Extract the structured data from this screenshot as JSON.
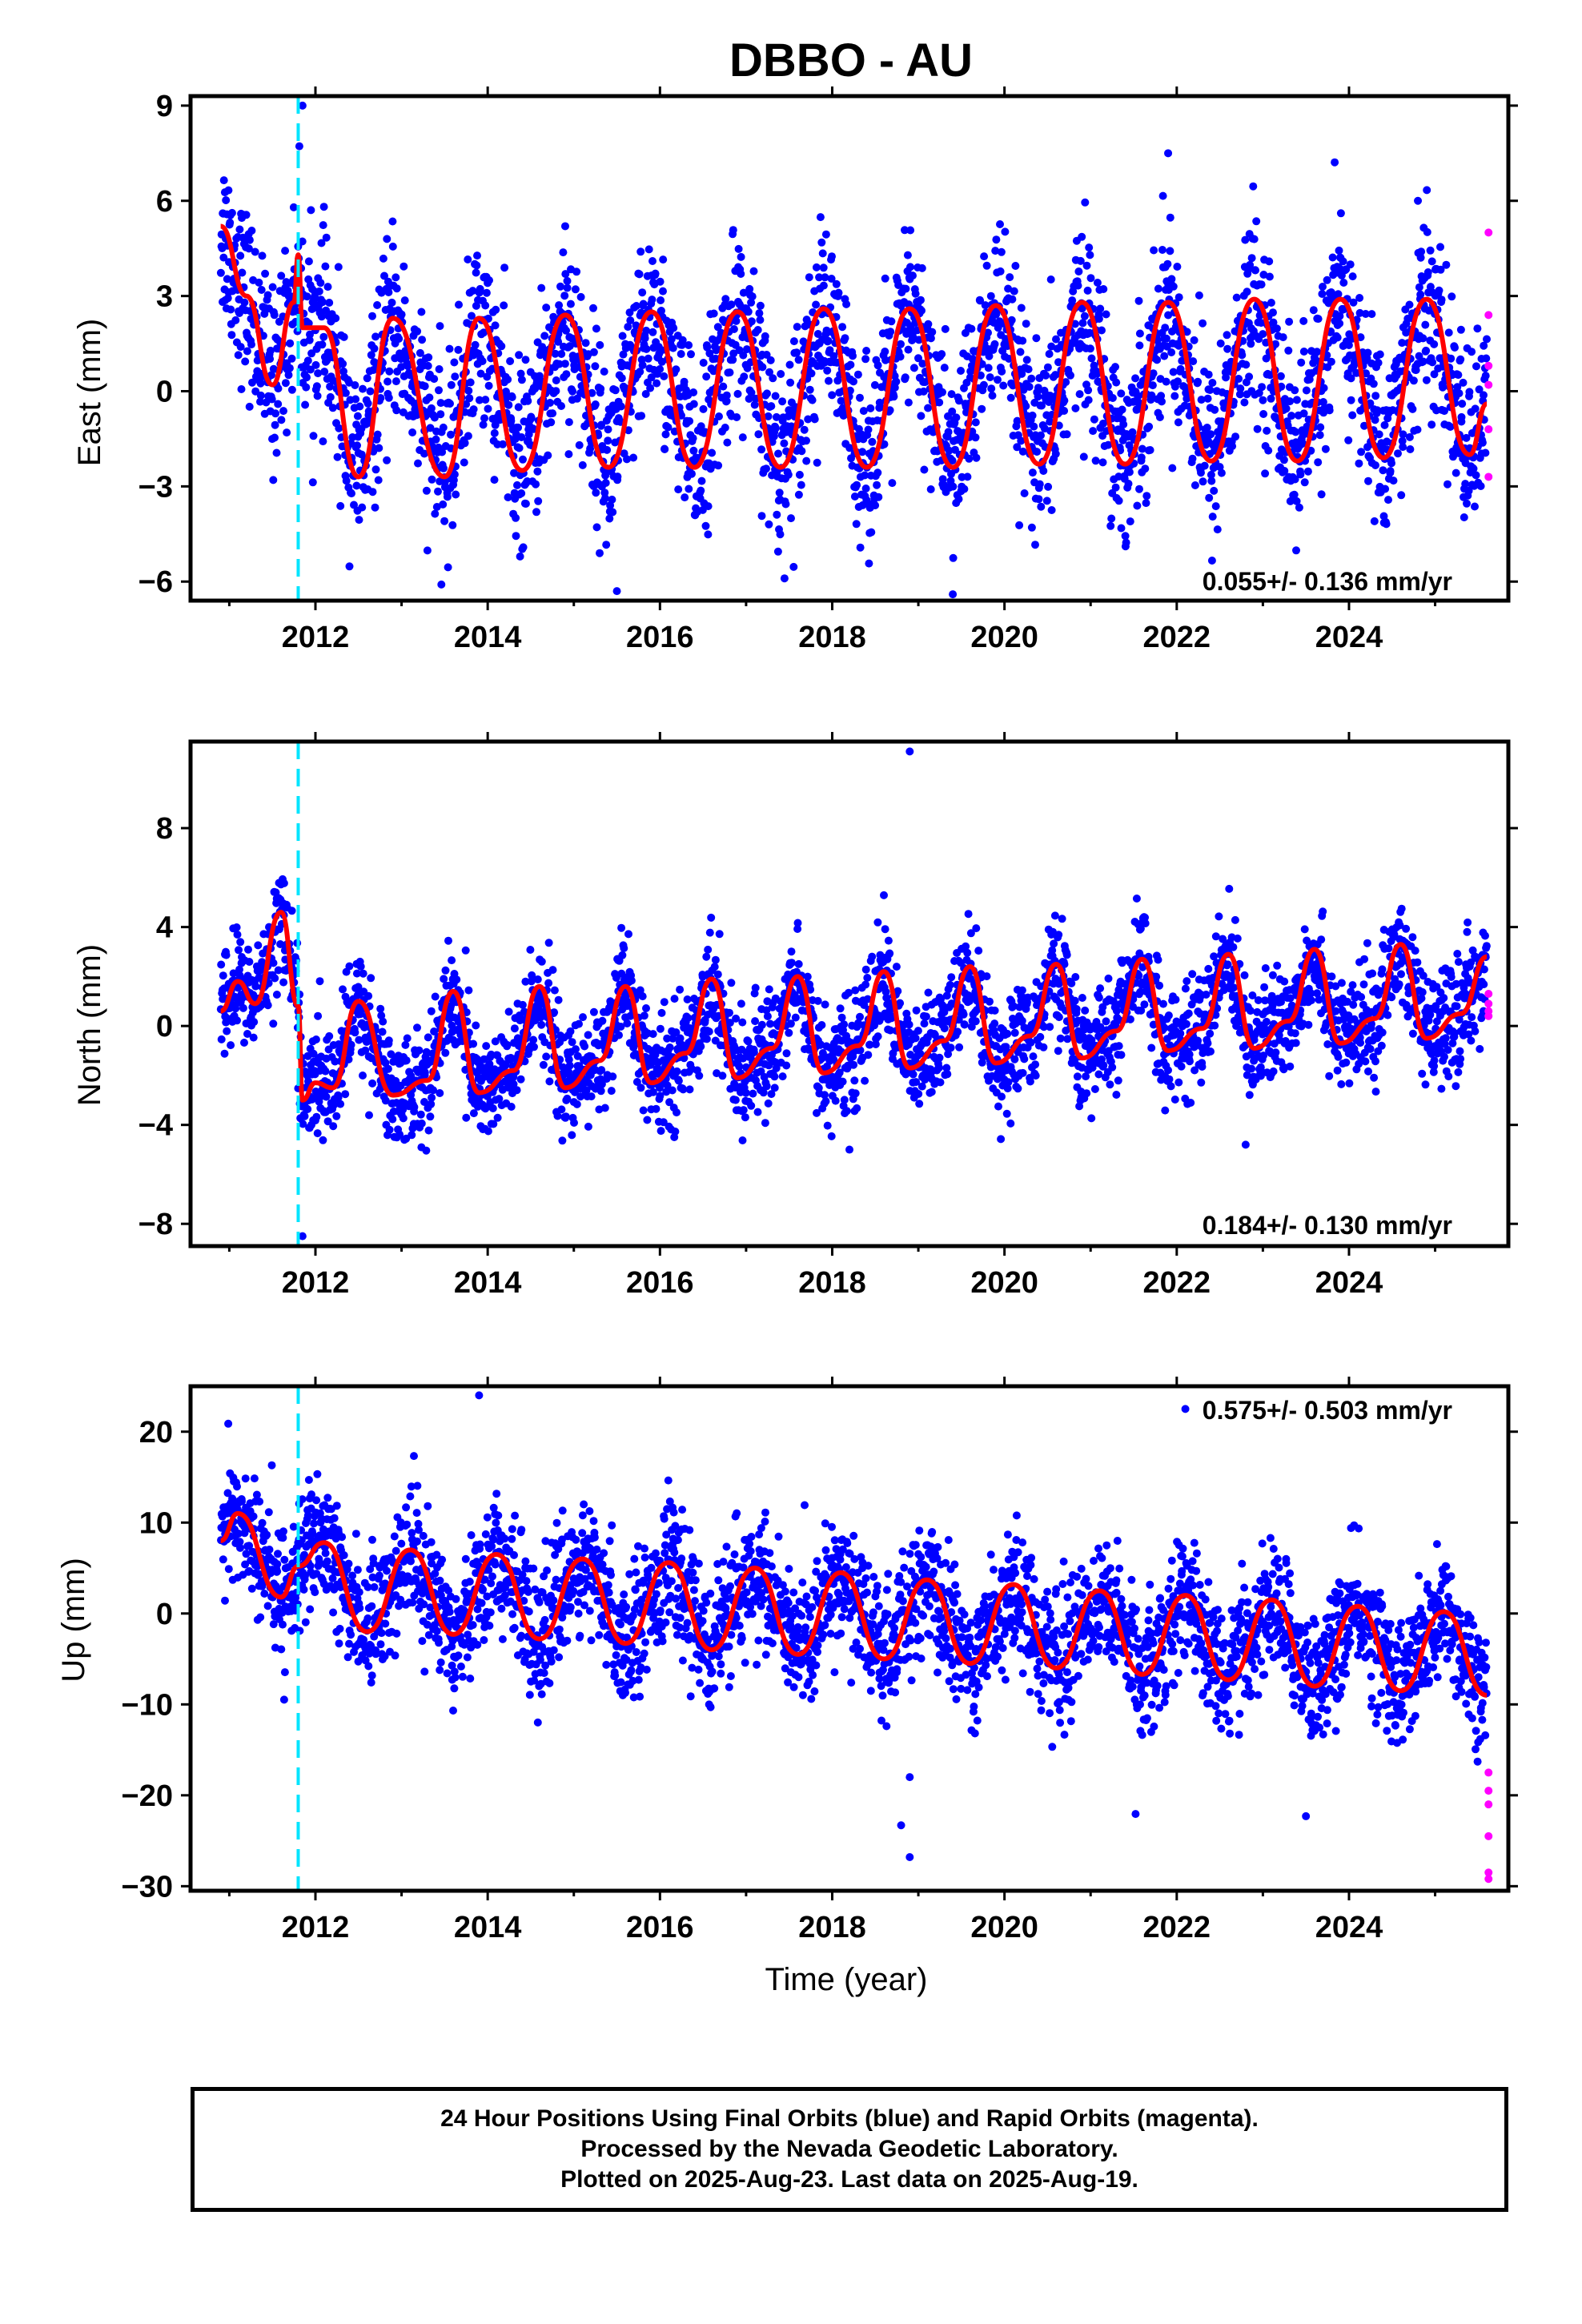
{
  "title": "DBBO - AU",
  "colors": {
    "final_points": "#0000ff",
    "rapid_points": "#ff00ff",
    "model_line": "#ff0000",
    "event_line": "#00e5ff",
    "frame": "#000000"
  },
  "x_axis": {
    "label": "Time (year)",
    "range": [
      2010.55,
      2025.85
    ],
    "ticks": [
      "2012",
      "2014",
      "2016",
      "2018",
      "2020",
      "2022",
      "2024"
    ]
  },
  "footer": {
    "line1": "24 Hour Positions Using Final Orbits (blue) and Rapid Orbits (magenta).",
    "line2": "Processed by the Nevada Geodetic Laboratory.",
    "line3": "Plotted on 2025-Aug-23. Last data on 2025-Aug-19."
  },
  "chart_data": [
    {
      "type": "scatter",
      "component": "east",
      "ylabel": "East (mm)",
      "ylim": [
        -6.6,
        9.3
      ],
      "yticks": [
        "−6",
        "−3",
        "0",
        "3",
        "6",
        "9"
      ],
      "rate_text": "0.055+/- 0.136 mm/yr",
      "rate_position": "bottom-right",
      "event_line_x": 2011.8,
      "series": [
        {
          "name": "Final Orbits (blue)",
          "kind": "points",
          "trend_mm_yr": 0.055,
          "annual_amplitude_mm": 2.5,
          "scatter_sd_mm": 1.4,
          "x_start": 2010.9,
          "x_end": 2025.6,
          "outliers": [
            [
              2011.85,
              9.0
            ],
            [
              2014.9,
              5.2
            ],
            [
              2024.8,
              6.0
            ],
            [
              2021.9,
              7.5
            ],
            [
              2019.4,
              -6.4
            ],
            [
              2015.5,
              -6.3
            ]
          ]
        },
        {
          "name": "Rapid Orbits (magenta)",
          "kind": "points",
          "x": [
            2025.62,
            2025.62,
            2025.62,
            2025.62,
            2025.62,
            2025.62
          ],
          "y": [
            5.0,
            2.4,
            0.8,
            0.2,
            -1.2,
            -2.7
          ]
        },
        {
          "name": "Model",
          "kind": "line",
          "x": [
            2010.9,
            2011.2,
            2011.5,
            2011.75,
            2011.8,
            2011.85,
            2012.1,
            2012.5,
            2012.9,
            2013.5,
            2013.9,
            2014.4,
            2014.9,
            2015.4,
            2015.9,
            2016.4,
            2016.9,
            2017.4,
            2017.9,
            2018.4,
            2018.9,
            2019.4,
            2019.9,
            2020.4,
            2020.9,
            2021.4,
            2021.9,
            2022.4,
            2022.9,
            2023.4,
            2023.9,
            2024.4,
            2024.9,
            2025.4,
            2025.6
          ],
          "y": [
            5.2,
            3.0,
            0.2,
            2.8,
            4.3,
            2.0,
            2.0,
            -2.7,
            2.3,
            -2.7,
            2.3,
            -2.5,
            2.4,
            -2.4,
            2.5,
            -2.4,
            2.5,
            -2.4,
            2.6,
            -2.4,
            2.6,
            -2.4,
            2.7,
            -2.3,
            2.8,
            -2.3,
            2.8,
            -2.2,
            2.9,
            -2.2,
            2.9,
            -2.1,
            2.9,
            -2.0,
            -0.4
          ]
        }
      ]
    },
    {
      "type": "scatter",
      "component": "north",
      "ylabel": "North (mm)",
      "ylim": [
        -8.9,
        11.5
      ],
      "yticks": [
        "−8",
        "−4",
        "0",
        "4",
        "8"
      ],
      "rate_text": "0.184+/- 0.130 mm/yr",
      "rate_position": "bottom-right",
      "event_line_x": 2011.8,
      "series": [
        {
          "name": "Final Orbits (blue)",
          "kind": "points",
          "trend_mm_yr": 0.184,
          "annual_amplitude_mm": 2.0,
          "scatter_sd_mm": 1.1,
          "x_start": 2010.9,
          "x_end": 2025.6,
          "outliers": [
            [
              2018.9,
              11.1
            ],
            [
              2018.2,
              -5.0
            ],
            [
              2022.8,
              -4.8
            ],
            [
              2011.85,
              -8.5
            ]
          ]
        },
        {
          "name": "Rapid Orbits (magenta)",
          "kind": "points",
          "x": [
            2025.62,
            2025.62,
            2025.62,
            2025.62
          ],
          "y": [
            1.3,
            0.9,
            0.6,
            0.4
          ]
        },
        {
          "name": "Model",
          "kind": "line",
          "x": [
            2010.9,
            2011.1,
            2011.3,
            2011.6,
            2011.8,
            2011.85,
            2012.0,
            2012.2,
            2012.5,
            2012.9,
            2013.3,
            2013.6,
            2013.9,
            2014.3,
            2014.6,
            2014.9,
            2015.3,
            2015.6,
            2015.9,
            2016.3,
            2016.6,
            2016.9,
            2017.3,
            2017.6,
            2017.9,
            2018.3,
            2018.6,
            2018.9,
            2019.3,
            2019.6,
            2019.9,
            2020.3,
            2020.6,
            2020.9,
            2021.3,
            2021.6,
            2021.9,
            2022.3,
            2022.6,
            2022.9,
            2023.3,
            2023.6,
            2023.9,
            2024.3,
            2024.6,
            2024.9,
            2025.3,
            2025.6
          ],
          "y": [
            0.6,
            1.8,
            0.9,
            4.6,
            0.8,
            -3.0,
            -2.3,
            -2.5,
            1.0,
            -2.8,
            -2.2,
            1.4,
            -2.7,
            -1.8,
            1.6,
            -2.5,
            -1.4,
            1.6,
            -2.3,
            -1.1,
            1.9,
            -2.1,
            -0.9,
            2.0,
            -1.9,
            -0.8,
            2.2,
            -1.7,
            -0.6,
            2.4,
            -1.5,
            -0.4,
            2.5,
            -1.3,
            -0.2,
            2.7,
            -1.0,
            -0.1,
            2.9,
            -0.9,
            0.2,
            3.1,
            -0.7,
            0.3,
            3.3,
            -0.5,
            0.5,
            2.8
          ]
        }
      ]
    },
    {
      "type": "scatter",
      "component": "up",
      "ylabel": "Up (mm)",
      "ylim": [
        -30.5,
        25
      ],
      "yticks": [
        "−30",
        "−20",
        "−10",
        "0",
        "10",
        "20"
      ],
      "rate_text": "0.575+/- 0.503 mm/yr",
      "rate_position": "top-right",
      "event_line_x": 2011.8,
      "series": [
        {
          "name": "Final Orbits (blue)",
          "kind": "points",
          "trend_mm_yr": 0.575,
          "annual_amplitude_mm": 5.5,
          "scatter_sd_mm": 3.5,
          "x_start": 2010.9,
          "x_end": 2025.6,
          "outliers": [
            [
              2013.9,
              24.0
            ],
            [
              2018.9,
              -26.8
            ],
            [
              2018.8,
              -23.3
            ],
            [
              2018.9,
              -18.0
            ],
            [
              2022.1,
              22.5
            ],
            [
              2023.5,
              -22.3
            ]
          ]
        },
        {
          "name": "Rapid Orbits (magenta)",
          "kind": "points",
          "x": [
            2025.62,
            2025.62,
            2025.62,
            2025.62,
            2025.62,
            2025.62
          ],
          "y": [
            -17.5,
            -19.5,
            -24.5,
            -28.5,
            -29.2,
            -21.0
          ]
        },
        {
          "name": "Model",
          "kind": "line",
          "x": [
            2010.9,
            2011.1,
            2011.6,
            2011.8,
            2012.1,
            2012.6,
            2013.1,
            2013.6,
            2014.1,
            2014.6,
            2015.1,
            2015.6,
            2016.1,
            2016.6,
            2017.1,
            2017.6,
            2018.1,
            2018.6,
            2019.1,
            2019.6,
            2020.1,
            2020.6,
            2021.1,
            2021.6,
            2022.1,
            2022.6,
            2023.1,
            2023.6,
            2024.1,
            2024.6,
            2025.1,
            2025.6
          ],
          "y": [
            8.0,
            11.0,
            1.8,
            5.2,
            7.8,
            -2.0,
            7.0,
            -2.3,
            6.5,
            -2.8,
            6.0,
            -3.3,
            5.6,
            -4.0,
            5.0,
            -4.5,
            4.5,
            -5.0,
            3.7,
            -5.5,
            3.2,
            -6.0,
            2.5,
            -6.7,
            2.0,
            -7.3,
            1.5,
            -8.0,
            0.8,
            -8.5,
            0.2,
            -9.0
          ]
        }
      ]
    }
  ]
}
